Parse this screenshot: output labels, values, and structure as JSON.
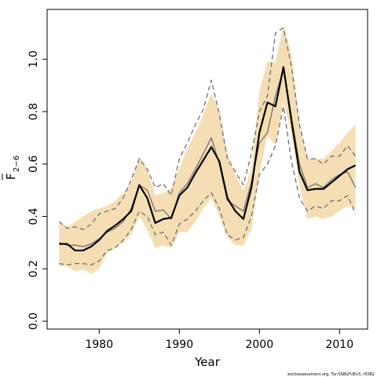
{
  "chart_data": {
    "type": "line",
    "xlabel": "Year",
    "ylabel_main": "F",
    "ylabel_sub": "2−6",
    "credit": "stockassessment.org, Tur-SSBLPUEv3, r5082",
    "xlim": [
      1973.5,
      2013.5
    ],
    "ylim": [
      -0.03,
      1.19
    ],
    "x_ticks": [
      1980,
      1990,
      2000,
      2010
    ],
    "y_ticks": [
      0.0,
      0.2,
      0.4,
      0.6,
      0.8,
      1.0
    ],
    "y_tick_labels": [
      "0.0",
      "0.2",
      "0.4",
      "0.6",
      "0.8",
      "1.0"
    ],
    "colors": {
      "band": "#f5deb3",
      "estimate": "#000000",
      "alt_line": "#777777",
      "alt_dashed": "#777777"
    },
    "years": [
      1975,
      1976,
      1977,
      1978,
      1979,
      1980,
      1981,
      1982,
      1983,
      1984,
      1985,
      1986,
      1987,
      1988,
      1989,
      1990,
      1991,
      1992,
      1993,
      1994,
      1995,
      1996,
      1997,
      1998,
      1999,
      2000,
      2001,
      2002,
      2003,
      2004,
      2005,
      2006,
      2007,
      2008,
      2009,
      2010,
      2011,
      2012
    ],
    "series": [
      {
        "role": "band_upper",
        "values": [
          0.38,
          0.36,
          0.38,
          0.4,
          0.42,
          0.43,
          0.44,
          0.46,
          0.49,
          0.53,
          0.63,
          0.58,
          0.48,
          0.49,
          0.51,
          0.58,
          0.66,
          0.72,
          0.79,
          0.87,
          0.8,
          0.64,
          0.56,
          0.5,
          0.58,
          0.88,
          0.99,
          0.99,
          1.13,
          1.02,
          0.75,
          0.62,
          0.62,
          0.62,
          0.65,
          0.68,
          0.72,
          0.75
        ]
      },
      {
        "role": "band_lower",
        "values": [
          0.21,
          0.21,
          0.19,
          0.2,
          0.18,
          0.2,
          0.26,
          0.28,
          0.3,
          0.33,
          0.4,
          0.35,
          0.28,
          0.29,
          0.28,
          0.34,
          0.34,
          0.38,
          0.43,
          0.47,
          0.4,
          0.32,
          0.29,
          0.29,
          0.35,
          0.56,
          0.71,
          0.67,
          0.84,
          0.71,
          0.52,
          0.39,
          0.4,
          0.39,
          0.4,
          0.42,
          0.44,
          0.43
        ]
      },
      {
        "role": "estimate",
        "values": [
          0.295,
          0.295,
          0.27,
          0.27,
          0.285,
          0.31,
          0.345,
          0.365,
          0.39,
          0.42,
          0.52,
          0.47,
          0.375,
          0.39,
          0.395,
          0.48,
          0.51,
          0.565,
          0.615,
          0.665,
          0.61,
          0.47,
          0.42,
          0.39,
          0.51,
          0.72,
          0.835,
          0.82,
          0.97,
          0.765,
          0.57,
          0.5,
          0.505,
          0.505,
          0.53,
          0.555,
          0.58,
          0.595
        ]
      },
      {
        "role": "alt_solid",
        "values": [
          0.3,
          0.29,
          0.29,
          0.285,
          0.295,
          0.315,
          0.34,
          0.355,
          0.38,
          0.43,
          0.52,
          0.5,
          0.42,
          0.425,
          0.39,
          0.49,
          0.525,
          0.58,
          0.64,
          0.7,
          0.6,
          0.46,
          0.44,
          0.42,
          0.53,
          0.68,
          0.72,
          0.86,
          0.96,
          0.78,
          0.6,
          0.51,
          0.525,
          0.51,
          0.54,
          0.56,
          0.57,
          0.51
        ]
      },
      {
        "role": "alt_upper_dashed",
        "values": [
          0.38,
          0.355,
          0.36,
          0.35,
          0.37,
          0.41,
          0.42,
          0.43,
          0.47,
          0.54,
          0.62,
          0.58,
          0.51,
          0.525,
          0.48,
          0.62,
          0.68,
          0.75,
          0.81,
          0.92,
          0.79,
          0.62,
          0.57,
          0.52,
          0.64,
          0.8,
          0.86,
          1.1,
          1.12,
          0.97,
          0.75,
          0.62,
          0.62,
          0.6,
          0.63,
          0.63,
          0.67,
          0.63
        ]
      },
      {
        "role": "alt_lower_dashed",
        "values": [
          0.22,
          0.215,
          0.22,
          0.22,
          0.215,
          0.23,
          0.27,
          0.28,
          0.31,
          0.35,
          0.42,
          0.4,
          0.33,
          0.34,
          0.29,
          0.37,
          0.39,
          0.42,
          0.46,
          0.49,
          0.43,
          0.33,
          0.31,
          0.32,
          0.4,
          0.56,
          0.6,
          0.67,
          0.82,
          0.61,
          0.47,
          0.42,
          0.44,
          0.43,
          0.46,
          0.46,
          0.48,
          0.41
        ]
      }
    ]
  }
}
